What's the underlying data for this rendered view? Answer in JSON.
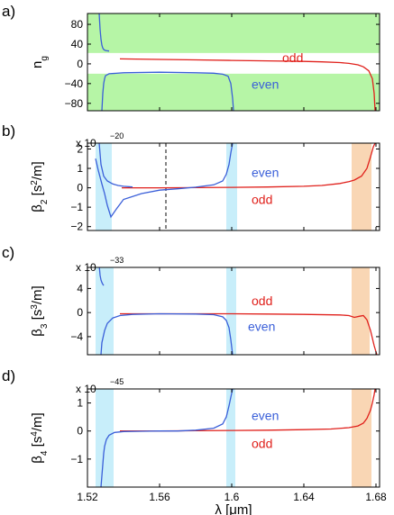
{
  "chart_data": [
    {
      "type": "line",
      "panel_label": "a)",
      "ylabel": "n",
      "ylabel_sub": "g",
      "multiplier": "",
      "multiplier_exp": "",
      "xlim": [
        1.52,
        1.682
      ],
      "ylim": [
        -95,
        102
      ],
      "y_ticks": [
        80,
        40,
        0,
        -40,
        -80
      ],
      "y_tick_labels": [
        "80",
        "40",
        "0",
        "−40",
        "−80"
      ],
      "shaded_regions": [
        {
          "axis": "y",
          "from": 22,
          "to": 102,
          "color": "#b6f5a6"
        },
        {
          "axis": "y",
          "from": -95,
          "to": -20,
          "color": "#b6f5a6"
        }
      ],
      "vline": null,
      "series": [
        {
          "name": "odd",
          "color": "#e0201b",
          "x": [
            1.538,
            1.56,
            1.58,
            1.6,
            1.62,
            1.64,
            1.65,
            1.66,
            1.665,
            1.67,
            1.673,
            1.676,
            1.678,
            1.679,
            1.6795
          ],
          "y": [
            10,
            9,
            8,
            7,
            6,
            5,
            4,
            2.5,
            1,
            -2,
            -6,
            -14,
            -30,
            -60,
            -95
          ]
        },
        {
          "name": "even",
          "color": "#3a5fd9",
          "x": [
            1.5265,
            1.527,
            1.5275,
            1.528,
            1.5285,
            1.529,
            1.53,
            1.532
          ],
          "y": [
            102,
            70,
            50,
            38,
            32,
            29,
            27,
            26
          ]
        },
        {
          "name": "even",
          "color": "#3a5fd9",
          "x": [
            1.528,
            1.5285,
            1.529,
            1.5295,
            1.53,
            1.532,
            1.54,
            1.56,
            1.58,
            1.59,
            1.595,
            1.598,
            1.5995,
            1.6005,
            1.601
          ],
          "y": [
            -95,
            -60,
            -40,
            -30,
            -24,
            -20,
            -18,
            -17,
            -18,
            -19,
            -21,
            -25,
            -40,
            -70,
            -95
          ]
        }
      ],
      "annotations": [
        {
          "text": "odd",
          "x": 1.628,
          "y": 13,
          "color": "#e0201b"
        },
        {
          "text": "even",
          "x": 1.611,
          "y": -41,
          "color": "#3a5fd9"
        }
      ]
    },
    {
      "type": "line",
      "panel_label": "b)",
      "ylabel": "β",
      "ylabel_sub": "2",
      "ylabel_unit_pre": " [s",
      "ylabel_sup": "2",
      "ylabel_unit_post": "/m]",
      "multiplier": "x 10",
      "multiplier_exp": "−20",
      "xlim": [
        1.52,
        1.682
      ],
      "ylim": [
        -2.2,
        2.3
      ],
      "y_ticks": [
        2,
        1,
        0,
        -1,
        -2
      ],
      "y_tick_labels": [
        "2",
        "1",
        "0",
        "−1",
        "−2"
      ],
      "shaded_regions": [
        {
          "axis": "x",
          "from": 1.5245,
          "to": 1.5335,
          "color": "#c8eefa"
        },
        {
          "axis": "x",
          "from": 1.597,
          "to": 1.603,
          "color": "#c8eefa"
        },
        {
          "axis": "x",
          "from": 1.6665,
          "to": 1.6775,
          "color": "#f9d6b4"
        }
      ],
      "vline": {
        "x": 1.5635
      },
      "series": [
        {
          "name": "odd",
          "color": "#e0201b",
          "x": [
            1.539,
            1.56,
            1.58,
            1.6,
            1.62,
            1.64,
            1.65,
            1.66,
            1.665,
            1.668,
            1.672,
            1.675,
            1.677,
            1.6785,
            1.6795
          ],
          "y": [
            0,
            0,
            0.01,
            0.02,
            0.04,
            0.08,
            0.12,
            0.22,
            0.32,
            0.4,
            0.6,
            1.0,
            1.6,
            2.1,
            2.3
          ]
        },
        {
          "name": "even",
          "color": "#3a5fd9",
          "x": [
            1.5265,
            1.5275,
            1.529,
            1.531,
            1.534,
            1.537,
            1.54,
            1.545
          ],
          "y": [
            2.3,
            1.2,
            0.6,
            0.35,
            0.2,
            0.12,
            0.08,
            0.04
          ]
        },
        {
          "name": "even",
          "color": "#3a5fd9",
          "x": [
            1.5245,
            1.526,
            1.528,
            1.5295,
            1.531,
            1.533,
            1.536,
            1.54,
            1.55,
            1.56,
            1.57,
            1.58,
            1.59,
            1.595,
            1.597,
            1.5985,
            1.5995,
            1.6005
          ],
          "y": [
            1.5,
            0.9,
            0.2,
            -0.3,
            -0.9,
            -1.5,
            -1.1,
            -0.6,
            -0.3,
            -0.12,
            -0.05,
            0.03,
            0.15,
            0.35,
            0.7,
            1.2,
            1.8,
            2.3
          ]
        }
      ],
      "annotations": [
        {
          "text": "even",
          "x": 1.611,
          "y": 0.8,
          "color": "#3a5fd9"
        },
        {
          "text": "odd",
          "x": 1.611,
          "y": -0.6,
          "color": "#e0201b"
        }
      ]
    },
    {
      "type": "line",
      "panel_label": "c)",
      "ylabel": "β",
      "ylabel_sub": "3",
      "ylabel_unit_pre": " [s",
      "ylabel_sup": "3",
      "ylabel_unit_post": "/m]",
      "multiplier": "x 10",
      "multiplier_exp": "−33",
      "xlim": [
        1.52,
        1.682
      ],
      "ylim": [
        -7,
        7.5
      ],
      "y_ticks": [
        4,
        0,
        -4
      ],
      "y_tick_labels": [
        "4",
        "0",
        "−4"
      ],
      "shaded_regions": [
        {
          "axis": "x",
          "from": 1.5245,
          "to": 1.5345,
          "color": "#c8eefa"
        },
        {
          "axis": "x",
          "from": 1.597,
          "to": 1.6025,
          "color": "#c8eefa"
        },
        {
          "axis": "x",
          "from": 1.6665,
          "to": 1.6765,
          "color": "#f9d6b4"
        }
      ],
      "vline": null,
      "series": [
        {
          "name": "odd",
          "color": "#e0201b",
          "x": [
            1.538,
            1.56,
            1.58,
            1.6,
            1.62,
            1.64,
            1.66,
            1.665,
            1.668,
            1.671,
            1.673,
            1.675,
            1.677,
            1.679,
            1.6805
          ],
          "y": [
            -0.2,
            -0.2,
            -0.2,
            -0.2,
            -0.25,
            -0.3,
            -0.4,
            -0.5,
            -0.8,
            -0.6,
            -0.5,
            -1.2,
            -3,
            -5.5,
            -7
          ]
        },
        {
          "name": "even",
          "color": "#3a5fd9",
          "x": [
            1.5266,
            1.527,
            1.5275,
            1.528,
            1.5285,
            1.529
          ],
          "y": [
            7.5,
            6.2,
            5.4,
            5.0,
            4.7,
            4.5
          ]
        },
        {
          "name": "even",
          "color": "#3a5fd9",
          "x": [
            1.5275,
            1.528,
            1.5295,
            1.531,
            1.534,
            1.538,
            1.545,
            1.56,
            1.58,
            1.59,
            1.595,
            1.597,
            1.5985,
            1.5995,
            1.6005
          ],
          "y": [
            -7,
            -5,
            -3,
            -1.8,
            -0.9,
            -0.5,
            -0.3,
            -0.2,
            -0.25,
            -0.35,
            -0.7,
            -1.3,
            -2.5,
            -4.5,
            -7
          ]
        }
      ],
      "annotations": [
        {
          "text": "odd",
          "x": 1.611,
          "y": 2.0,
          "color": "#e0201b"
        },
        {
          "text": "even",
          "x": 1.609,
          "y": -2.3,
          "color": "#3a5fd9"
        }
      ]
    },
    {
      "type": "line",
      "panel_label": "d)",
      "ylabel": "β",
      "ylabel_sub": "4",
      "ylabel_unit_pre": " [s",
      "ylabel_sup": "4",
      "ylabel_unit_post": "/m]",
      "multiplier": "x 10",
      "multiplier_exp": "−45",
      "xlim": [
        1.52,
        1.682
      ],
      "ylim": [
        -2,
        1.5
      ],
      "y_ticks": [
        1,
        0,
        -1
      ],
      "y_tick_labels": [
        "1",
        "0",
        "−1"
      ],
      "x_ticks": [
        1.52,
        1.56,
        1.6,
        1.64,
        1.68
      ],
      "x_tick_labels": [
        "1.52",
        "1.56",
        "1.6",
        "1.64",
        "1.68"
      ],
      "xlabel": "λ [μm]",
      "shaded_regions": [
        {
          "axis": "x",
          "from": 1.5245,
          "to": 1.5345,
          "color": "#c8eefa"
        },
        {
          "axis": "x",
          "from": 1.597,
          "to": 1.602,
          "color": "#c8eefa"
        },
        {
          "axis": "x",
          "from": 1.6665,
          "to": 1.6775,
          "color": "#f9d6b4"
        }
      ],
      "vline": null,
      "series": [
        {
          "name": "odd",
          "color": "#e0201b",
          "x": [
            1.538,
            1.56,
            1.58,
            1.6,
            1.62,
            1.64,
            1.655,
            1.665,
            1.67,
            1.673,
            1.675,
            1.677,
            1.678,
            1.679,
            1.6795
          ],
          "y": [
            0,
            0,
            0.01,
            0.02,
            0.03,
            0.05,
            0.07,
            0.12,
            0.18,
            0.28,
            0.45,
            0.75,
            1.0,
            1.3,
            1.5
          ]
        },
        {
          "name": "even",
          "color": "#3a5fd9",
          "x": [
            1.5275,
            1.528,
            1.5285,
            1.529,
            1.5295,
            1.5305,
            1.532,
            1.535,
            1.54,
            1.55,
            1.56,
            1.57,
            1.58,
            1.59,
            1.595,
            1.597,
            1.5985,
            1.5995,
            1.6005
          ],
          "y": [
            -2,
            -1.6,
            -1.2,
            -0.8,
            -0.55,
            -0.3,
            -0.15,
            -0.05,
            -0.02,
            -0.01,
            0,
            0,
            0.03,
            0.1,
            0.25,
            0.5,
            0.9,
            1.2,
            1.5
          ]
        }
      ],
      "annotations": [
        {
          "text": "even",
          "x": 1.611,
          "y": 0.55,
          "color": "#3a5fd9"
        },
        {
          "text": "odd",
          "x": 1.611,
          "y": -0.45,
          "color": "#e0201b"
        }
      ]
    }
  ]
}
